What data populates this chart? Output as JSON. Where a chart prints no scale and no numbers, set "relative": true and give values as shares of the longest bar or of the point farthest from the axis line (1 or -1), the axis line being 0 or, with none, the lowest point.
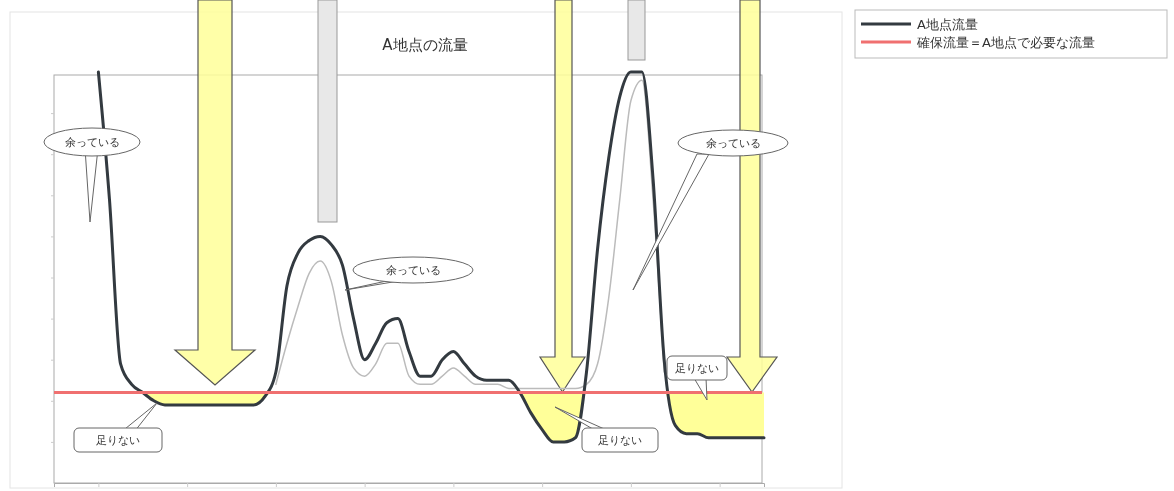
{
  "chart_data": {
    "type": "line",
    "title": "A地点の流量",
    "relative": true,
    "legend": "top right",
    "grid": false,
    "categories": [
      null,
      null,
      null,
      null,
      null,
      null,
      null,
      null,
      null,
      null,
      null,
      null,
      null,
      null,
      null,
      null,
      null,
      null,
      null,
      null,
      null,
      null,
      null,
      null,
      null,
      null,
      null,
      null,
      null,
      null,
      null,
      null,
      null,
      null,
      null,
      null,
      null,
      null,
      null,
      null,
      null,
      null,
      null,
      null,
      null,
      null,
      null,
      null,
      null,
      null,
      null,
      null,
      null,
      null,
      null,
      null,
      null,
      null,
      null,
      null,
      null,
      null,
      null,
      null,
      null
    ],
    "series": [
      {
        "color": "#bbbbbb",
        "values": [
          null,
          null,
          null,
          null,
          null,
          null,
          null,
          null,
          null,
          null,
          null,
          null,
          null,
          null,
          null,
          null,
          null,
          null,
          null,
          null,
          0.24,
          0.34,
          0.43,
          0.51,
          0.54,
          0.49,
          0.36,
          0.28,
          0.26,
          0.29,
          0.34,
          0.34,
          0.26,
          0.24,
          0.24,
          0.26,
          0.28,
          0.26,
          0.24,
          0.24,
          0.24,
          0.23,
          0.23,
          0.23,
          0.23,
          0.23,
          0.23,
          0.23,
          0.24,
          0.29,
          0.45,
          0.69,
          0.93,
          0.98,
          0.69,
          0.27,
          null,
          null,
          null,
          null,
          null,
          null,
          null,
          null,
          null
        ]
      },
      {
        "name": "A地点流量",
        "color": "#333a40",
        "values": [
          null,
          null,
          null,
          null,
          1.0,
          0.69,
          0.29,
          0.24,
          0.22,
          0.2,
          0.19,
          0.19,
          0.19,
          0.19,
          0.19,
          0.19,
          0.19,
          0.19,
          0.19,
          0.21,
          0.27,
          0.48,
          0.56,
          0.59,
          0.6,
          0.58,
          0.53,
          0.4,
          0.3,
          0.34,
          0.39,
          0.4,
          0.32,
          0.26,
          0.26,
          0.3,
          0.32,
          0.29,
          0.26,
          0.25,
          0.25,
          0.25,
          0.22,
          0.17,
          0.13,
          0.1,
          0.1,
          0.11,
          0.27,
          0.57,
          0.79,
          0.94,
          1.0,
          1.0,
          0.74,
          0.3,
          0.14,
          0.12,
          0.12,
          0.11,
          0.11,
          0.11,
          0.11,
          0.11,
          0.11
        ]
      }
    ],
    "ref_lines": [
      {
        "axis": "y",
        "value": 0.22,
        "label": "確保流量＝A地点で必要な流量",
        "color": "#f07070"
      }
    ],
    "annotations": [
      "余っている",
      "余っている",
      "余っている",
      "足りない",
      "足りない",
      "足りない"
    ]
  }
}
